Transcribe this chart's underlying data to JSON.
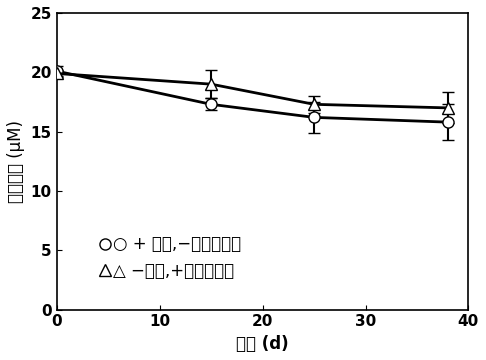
{
  "series1": {
    "x": [
      0,
      15,
      25,
      38
    ],
    "y": [
      20.1,
      17.3,
      16.2,
      15.8
    ],
    "yerr": [
      0.4,
      0.5,
      1.3,
      1.5
    ],
    "marker": "o",
    "legend_text": "○ + 柠条,−培养物接种"
  },
  "series2": {
    "x": [
      0,
      15,
      25,
      38
    ],
    "y": [
      19.9,
      19.0,
      17.3,
      17.0
    ],
    "yerr": [
      0.3,
      1.2,
      0.7,
      1.3
    ],
    "marker": "^",
    "legend_text": "△ −柠条,+培养物接种"
  },
  "xlabel": "时间 (d)",
  "ylabel": "五氯苯酚 (μM)",
  "xlim": [
    0,
    40
  ],
  "ylim": [
    0,
    25
  ],
  "xticks": [
    0,
    10,
    20,
    30,
    40
  ],
  "yticks": [
    0,
    5,
    10,
    15,
    20,
    25
  ],
  "fontsize_label": 12,
  "fontsize_tick": 11,
  "fontsize_legend": 12,
  "linewidth": 2.0,
  "markersize": 8,
  "capsize": 4
}
